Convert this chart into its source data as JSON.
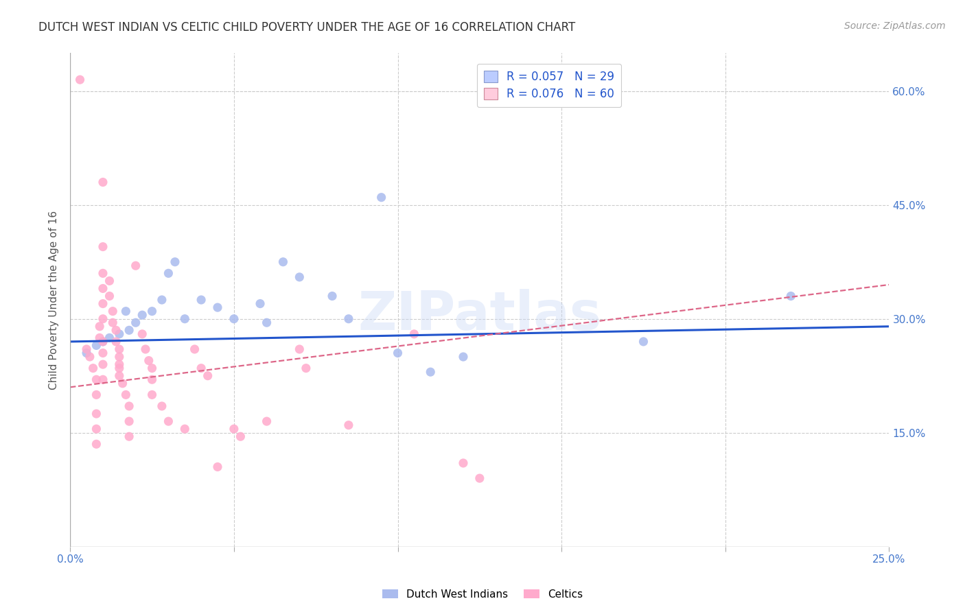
{
  "title": "DUTCH WEST INDIAN VS CELTIC CHILD POVERTY UNDER THE AGE OF 16 CORRELATION CHART",
  "source": "Source: ZipAtlas.com",
  "ylabel": "Child Poverty Under the Age of 16",
  "watermark": "ZIPatlas",
  "xlim": [
    0.0,
    0.25
  ],
  "ylim": [
    0.0,
    0.65
  ],
  "xticks": [
    0.0,
    0.05,
    0.1,
    0.15,
    0.2,
    0.25
  ],
  "yticks": [
    0.0,
    0.15,
    0.3,
    0.45,
    0.6
  ],
  "blue_color": "#aabbee",
  "pink_color": "#ffaacc",
  "legend_blue_label": "R = 0.057   N = 29",
  "legend_pink_label": "R = 0.076   N = 60",
  "legend_blue_facecolor": "#bbccff",
  "legend_pink_facecolor": "#ffccdd",
  "trendline_blue_color": "#2255cc",
  "trendline_pink_color": "#dd6688",
  "blue_scatter": [
    [
      0.005,
      0.255
    ],
    [
      0.008,
      0.265
    ],
    [
      0.01,
      0.27
    ],
    [
      0.012,
      0.275
    ],
    [
      0.015,
      0.28
    ],
    [
      0.017,
      0.31
    ],
    [
      0.018,
      0.285
    ],
    [
      0.02,
      0.295
    ],
    [
      0.022,
      0.305
    ],
    [
      0.025,
      0.31
    ],
    [
      0.028,
      0.325
    ],
    [
      0.03,
      0.36
    ],
    [
      0.032,
      0.375
    ],
    [
      0.035,
      0.3
    ],
    [
      0.04,
      0.325
    ],
    [
      0.045,
      0.315
    ],
    [
      0.05,
      0.3
    ],
    [
      0.058,
      0.32
    ],
    [
      0.06,
      0.295
    ],
    [
      0.065,
      0.375
    ],
    [
      0.07,
      0.355
    ],
    [
      0.08,
      0.33
    ],
    [
      0.085,
      0.3
    ],
    [
      0.095,
      0.46
    ],
    [
      0.1,
      0.255
    ],
    [
      0.11,
      0.23
    ],
    [
      0.12,
      0.25
    ],
    [
      0.175,
      0.27
    ],
    [
      0.22,
      0.33
    ]
  ],
  "pink_scatter": [
    [
      0.003,
      0.615
    ],
    [
      0.005,
      0.26
    ],
    [
      0.006,
      0.25
    ],
    [
      0.007,
      0.235
    ],
    [
      0.008,
      0.22
    ],
    [
      0.008,
      0.2
    ],
    [
      0.008,
      0.175
    ],
    [
      0.008,
      0.155
    ],
    [
      0.008,
      0.135
    ],
    [
      0.009,
      0.29
    ],
    [
      0.009,
      0.275
    ],
    [
      0.01,
      0.48
    ],
    [
      0.01,
      0.395
    ],
    [
      0.01,
      0.36
    ],
    [
      0.01,
      0.34
    ],
    [
      0.01,
      0.32
    ],
    [
      0.01,
      0.3
    ],
    [
      0.01,
      0.27
    ],
    [
      0.01,
      0.255
    ],
    [
      0.01,
      0.24
    ],
    [
      0.01,
      0.22
    ],
    [
      0.012,
      0.35
    ],
    [
      0.012,
      0.33
    ],
    [
      0.013,
      0.31
    ],
    [
      0.013,
      0.295
    ],
    [
      0.014,
      0.285
    ],
    [
      0.014,
      0.27
    ],
    [
      0.015,
      0.26
    ],
    [
      0.015,
      0.25
    ],
    [
      0.015,
      0.24
    ],
    [
      0.015,
      0.235
    ],
    [
      0.015,
      0.225
    ],
    [
      0.016,
      0.215
    ],
    [
      0.017,
      0.2
    ],
    [
      0.018,
      0.185
    ],
    [
      0.018,
      0.165
    ],
    [
      0.018,
      0.145
    ],
    [
      0.02,
      0.37
    ],
    [
      0.022,
      0.28
    ],
    [
      0.023,
      0.26
    ],
    [
      0.024,
      0.245
    ],
    [
      0.025,
      0.235
    ],
    [
      0.025,
      0.22
    ],
    [
      0.025,
      0.2
    ],
    [
      0.028,
      0.185
    ],
    [
      0.03,
      0.165
    ],
    [
      0.035,
      0.155
    ],
    [
      0.038,
      0.26
    ],
    [
      0.04,
      0.235
    ],
    [
      0.042,
      0.225
    ],
    [
      0.045,
      0.105
    ],
    [
      0.05,
      0.155
    ],
    [
      0.052,
      0.145
    ],
    [
      0.06,
      0.165
    ],
    [
      0.07,
      0.26
    ],
    [
      0.072,
      0.235
    ],
    [
      0.085,
      0.16
    ],
    [
      0.105,
      0.28
    ],
    [
      0.12,
      0.11
    ],
    [
      0.125,
      0.09
    ]
  ],
  "grid_color": "#cccccc",
  "background_color": "#ffffff",
  "axis_label_color": "#4477cc",
  "title_color": "#333333",
  "title_fontsize": 12,
  "source_fontsize": 10,
  "axis_fontsize": 11
}
